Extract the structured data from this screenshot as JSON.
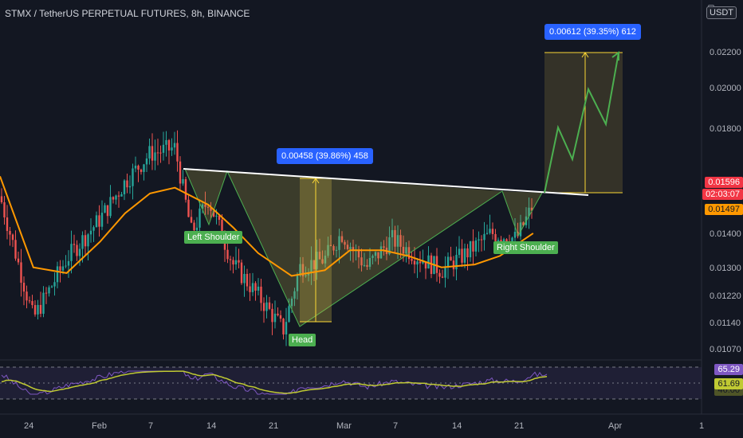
{
  "header": {
    "title": "STMX / TetherUS PERPETUAL FUTURES, 8h, BINANCE",
    "currency": "USDT"
  },
  "price_axis": {
    "labels": [
      "0.02200",
      "0.02000",
      "0.01800",
      "0.01596",
      "0.01497",
      "0.01400",
      "0.01300",
      "0.01220",
      "0.01140",
      "0.01070"
    ],
    "current_price": "0.01596",
    "countdown": "02:03:07",
    "ma_value": "0.01497",
    "current_price_color": "#f23645",
    "ma_color": "#ff9800"
  },
  "time_axis": {
    "labels": [
      "24",
      "Feb",
      "7",
      "14",
      "21",
      "Mar",
      "7",
      "14",
      "21",
      "Apr",
      "1"
    ]
  },
  "rsi": {
    "value": "65.29",
    "ma_value": "61.69",
    "hidden_value": "46.00",
    "line_color": "#7e57c2",
    "ma_color": "#c0ca33"
  },
  "annotations": {
    "left_shoulder": "Left Shoulder",
    "head": "Head",
    "right_shoulder": "Right Shoulder",
    "measure_head": "0.00458 (39.86%) 458",
    "measure_target": "0.00612 (39.35%) 612"
  },
  "colors": {
    "background": "#131722",
    "up_candle": "#26a69a",
    "down_candle": "#ef5350",
    "neckline": "#ffffff",
    "measure_blue": "#2962ff",
    "pattern_green": "#4caf50",
    "projection_green": "#4caf50"
  },
  "chart_data": {
    "type": "line",
    "title": "STMX / TetherUS PERPETUAL FUTURES, 8h, BINANCE",
    "ylim": [
      0.0106,
      0.0232
    ],
    "series": [
      {
        "name": "",
        "x": [
          "2022-01-20",
          "2022-01-24",
          "2022-01-28",
          "2022-02-01",
          "2022-02-04",
          "2022-02-07",
          "2022-02-10",
          "2022-02-12",
          "2022-02-14",
          "2022-02-17",
          "2022-02-20",
          "2022-02-23",
          "2022-02-25",
          "2022-02-28",
          "2022-03-02",
          "2022-03-05",
          "2022-03-08",
          "2022-03-11",
          "2022-03-14",
          "2022-03-17",
          "2022-03-20",
          "2022-03-23",
          "2022-03-25"
        ],
        "values": [
          0.0163,
          0.012,
          0.0141,
          0.0155,
          0.0168,
          0.0178,
          0.018,
          0.015,
          0.0162,
          0.0139,
          0.0128,
          0.0116,
          0.0138,
          0.0141,
          0.015,
          0.0138,
          0.0148,
          0.0142,
          0.0137,
          0.0143,
          0.015,
          0.0148,
          0.016
        ]
      },
      {
        "name": "",
        "x": [
          "2022-01-20",
          "2022-01-24",
          "2022-01-28",
          "2022-02-01",
          "2022-02-04",
          "2022-02-07",
          "2022-02-10",
          "2022-02-14",
          "2022-02-17",
          "2022-02-20",
          "2022-02-24",
          "2022-02-28",
          "2022-03-03",
          "2022-03-07",
          "2022-03-10",
          "2022-03-14",
          "2022-03-18",
          "2022-03-21",
          "2022-03-25"
        ],
        "values": [
          0.017,
          0.0138,
          0.0136,
          0.0147,
          0.0157,
          0.0164,
          0.0166,
          0.016,
          0.0152,
          0.0143,
          0.0135,
          0.0137,
          0.0144,
          0.0144,
          0.0142,
          0.0138,
          0.0139,
          0.0142,
          0.015
        ]
      },
      {
        "name": "",
        "x": [
          "2022-03-25",
          "2022-03-27",
          "2022-03-29",
          "2022-03-31",
          "2022-04-02",
          "2022-04-04"
        ],
        "values": [
          0.016,
          0.0183,
          0.0165,
          0.0198,
          0.018,
          0.022
        ]
      }
    ],
    "neckline": {
      "x": [
        "2022-02-10",
        "2022-03-28"
      ],
      "values": [
        0.0167,
        0.0154
      ]
    },
    "rsi": {
      "latest": 65.29,
      "ma_latest": 61.69,
      "bands": [
        70,
        50,
        30
      ]
    }
  }
}
